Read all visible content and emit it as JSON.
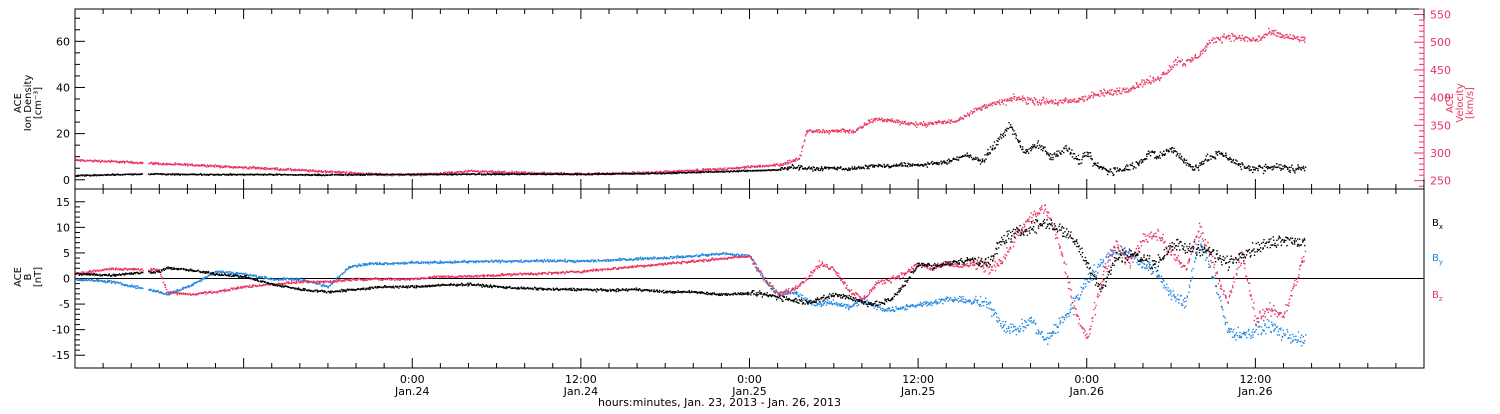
{
  "chart_data": {
    "type": "scatter",
    "colors": {
      "black": "#000000",
      "pink": "#e8335f",
      "blue": "#1f86e0"
    },
    "x_axis": {
      "unit": "hours",
      "range": [
        -6,
        90
      ],
      "ticks": [
        {
          "hour": 18,
          "time": "0:00",
          "date": "Jan.24"
        },
        {
          "hour": 30,
          "time": "12:00",
          "date": "Jan.24"
        },
        {
          "hour": 42,
          "time": "0:00",
          "date": "Jan.25"
        },
        {
          "hour": 54,
          "time": "12:00",
          "date": "Jan.25"
        },
        {
          "hour": 66,
          "time": "0:00",
          "date": "Jan.26"
        },
        {
          "hour": 78,
          "time": "12:00",
          "date": "Jan.26"
        }
      ],
      "label": "hours:minutes, Jan. 23, 2013 - Jan. 26, 2013"
    },
    "panels": [
      {
        "id": "top",
        "left_axis": {
          "label_lines": [
            "ACE",
            "Ion Density",
            "[cm⁻³]"
          ],
          "range": [
            -4,
            74
          ],
          "ticks": [
            0,
            20,
            40,
            60
          ]
        },
        "right_axis": {
          "label_lines": [
            "ACE",
            "Velocity",
            "[km/s]"
          ],
          "range": [
            235,
            560
          ],
          "ticks": [
            250,
            300,
            350,
            400,
            450,
            500,
            550
          ]
        },
        "series": [
          {
            "axis": "left",
            "color": "black",
            "x": [
              -6,
              -3.5,
              0,
              0.5,
              3,
              5,
              7,
              10,
              13,
              16,
              18,
              22,
              26,
              28,
              30,
              33,
              36,
              38,
              40,
              42,
              44,
              45,
              46,
              47,
              48,
              49,
              50,
              51,
              52,
              53,
              54,
              56,
              57.5,
              58.5,
              59.5,
              60.5,
              61.5,
              62.5,
              63.5,
              64.5,
              65.5,
              66,
              66.5,
              67.5,
              68.5,
              69.5,
              70.5,
              71,
              72,
              73,
              73.5,
              74.5,
              75.5,
              77,
              78,
              79.5,
              80.5,
              81.5
            ],
            "y": [
              2,
              2.5,
              2.8,
              2.6,
              2.6,
              2.5,
              2.6,
              2.4,
              2.4,
              2.6,
              2.6,
              2.7,
              2.7,
              2.8,
              2.7,
              2.9,
              3.1,
              3.5,
              3.8,
              4.2,
              4.5,
              6,
              5.2,
              5,
              5.5,
              5,
              5.5,
              6.5,
              6,
              7,
              6.5,
              8,
              11,
              8,
              16,
              24,
              12,
              16,
              10,
              14,
              8,
              12,
              7,
              4,
              5,
              7,
              12,
              10,
              14,
              8,
              5,
              9,
              12,
              6,
              5,
              6,
              5,
              5.5
            ]
          },
          {
            "axis": "right",
            "color": "pink",
            "x": [
              -6,
              -3.5,
              0,
              0.5,
              3,
              5,
              7,
              10,
              13,
              16,
              18,
              20,
              22,
              25,
              28,
              30,
              32,
              35,
              38,
              40,
              42,
              44,
              45.5,
              46,
              47.5,
              48.5,
              49.5,
              50.5,
              51,
              52,
              53,
              54,
              55,
              56.5,
              58,
              59,
              60,
              61,
              62,
              63,
              64,
              65,
              66,
              67,
              68,
              69,
              70,
              71,
              71.5,
              72.5,
              73,
              74,
              75,
              76,
              77,
              78,
              79,
              80,
              81.5
            ],
            "y": [
              288,
              286,
              282,
              281,
              279,
              276,
              274,
              270,
              266,
              262,
              262,
              264,
              268,
              266,
              264,
              263,
              264,
              266,
              270,
              272,
              276,
              280,
              290,
              340,
              340,
              342,
              340,
              358,
              362,
              360,
              356,
              352,
              355,
              358,
              378,
              388,
              394,
              400,
              396,
              394,
              393,
              395,
              402,
              408,
              412,
              418,
              428,
              435,
              445,
              470,
              462,
              480,
              505,
              512,
              508,
              505,
              518,
              512,
              505
            ]
          }
        ]
      },
      {
        "id": "bottom",
        "left_axis": {
          "label_lines": [
            "ACE",
            "B",
            "[nT]"
          ],
          "range": [
            -17.5,
            17.5
          ],
          "ticks": [
            -15,
            -10,
            -5,
            0,
            5,
            10,
            15
          ]
        },
        "zero_line": true,
        "legend": [
          {
            "base": "B",
            "sub": "x",
            "color": "black"
          },
          {
            "base": "B",
            "sub": "y",
            "color": "blue"
          },
          {
            "base": "B",
            "sub": "z",
            "color": "pink"
          }
        ],
        "series": [
          {
            "name": "Bx",
            "color": "black",
            "x": [
              -6,
              -3.5,
              0,
              0.5,
              2,
              4,
              6,
              8,
              10,
              12,
              14,
              16,
              18,
              20,
              22,
              24,
              26,
              28,
              30,
              32,
              34,
              36,
              38,
              40,
              42,
              43,
              44,
              45,
              46,
              47,
              48,
              49,
              50,
              51,
              52,
              53,
              54,
              55,
              56,
              57,
              58,
              59,
              60,
              61,
              62,
              63,
              64,
              65,
              66,
              67,
              68,
              69,
              70,
              71,
              72,
              73,
              74,
              75,
              76,
              77,
              78,
              79,
              80,
              81.5
            ],
            "y": [
              1,
              0.8,
              1.5,
              2.2,
              1.8,
              1,
              0.5,
              -1,
              -2,
              -2.5,
              -2,
              -1.5,
              -1.5,
              -1.2,
              -1,
              -1.5,
              -1.8,
              -2,
              -2,
              -2.2,
              -2,
              -2.5,
              -2.5,
              -3,
              -2.8,
              -3,
              -3.5,
              -4,
              -4.5,
              -4,
              -3,
              -3.5,
              -4.5,
              -5,
              -4,
              -1,
              3,
              2.5,
              3,
              3.5,
              4,
              3,
              8,
              9,
              10,
              11,
              10,
              8,
              3,
              -2,
              4,
              5,
              4,
              3,
              7,
              6,
              6,
              5,
              3,
              5,
              6,
              7,
              8,
              7
            ]
          },
          {
            "name": "By",
            "color": "blue",
            "x": [
              -6,
              -3.5,
              0,
              0.5,
              2,
              4,
              6,
              8,
              10,
              12,
              13.5,
              15,
              18,
              20,
              22,
              24,
              26,
              28,
              30,
              32,
              34,
              36,
              38,
              40,
              42,
              43,
              44,
              45,
              46,
              47,
              48,
              49,
              50,
              51,
              52,
              53,
              54,
              55,
              56,
              57,
              58,
              59,
              60,
              61,
              62,
              63,
              64,
              65,
              66,
              67,
              68,
              69,
              70,
              71,
              72,
              73,
              74,
              75,
              76,
              77,
              78,
              79,
              80,
              81.5
            ],
            "y": [
              0,
              -0.5,
              -2.5,
              -3,
              -1.5,
              1.5,
              1,
              0,
              0,
              -1.5,
              2.5,
              3,
              3.2,
              3.3,
              3.4,
              3.5,
              3.5,
              3.6,
              3.5,
              3.7,
              4,
              4.2,
              4.5,
              5,
              4.5,
              0,
              -3,
              -2.5,
              -4,
              -5,
              -4.5,
              -5.5,
              -4,
              -5.5,
              -6,
              -5.5,
              -5,
              -4.5,
              -4,
              -4,
              -4.5,
              -5,
              -9,
              -10,
              -8,
              -12,
              -9,
              -5,
              0,
              3,
              6,
              5,
              3,
              1,
              -3,
              -5,
              8,
              0,
              -10,
              -11,
              -10,
              -9,
              -11,
              -12
            ]
          },
          {
            "name": "Bz",
            "color": "pink",
            "x": [
              -6,
              -3.5,
              0,
              0.5,
              2,
              4,
              6,
              8,
              10,
              12,
              14,
              16,
              18,
              20,
              22,
              24,
              26,
              28,
              30,
              32,
              34,
              36,
              38,
              40,
              42,
              43,
              44,
              45,
              46,
              47,
              48,
              49,
              50,
              51,
              52,
              53,
              54,
              55,
              56,
              57,
              58,
              59,
              60,
              61,
              62,
              63,
              64,
              65,
              66,
              67,
              68,
              69,
              70,
              71,
              72,
              73,
              74,
              75,
              76,
              77,
              78,
              79,
              80,
              81.5
            ],
            "y": [
              1,
              2,
              1.8,
              -2.5,
              -3,
              -2.5,
              -1.5,
              -1,
              -0.5,
              -0.5,
              0,
              0,
              0,
              0.5,
              0.5,
              0.8,
              1,
              1.2,
              1.5,
              2,
              2.5,
              3,
              3.5,
              4,
              4.5,
              0,
              -3,
              -2,
              0,
              3,
              2,
              -2,
              -4,
              -1,
              0,
              1,
              3,
              2,
              3,
              2.5,
              3,
              2,
              4,
              9,
              12,
              14,
              7,
              -5,
              -12,
              0,
              7,
              3,
              8,
              9,
              5,
              2,
              10,
              3,
              -5,
              5,
              -8,
              -6,
              -7,
              5
            ]
          }
        ]
      }
    ]
  }
}
